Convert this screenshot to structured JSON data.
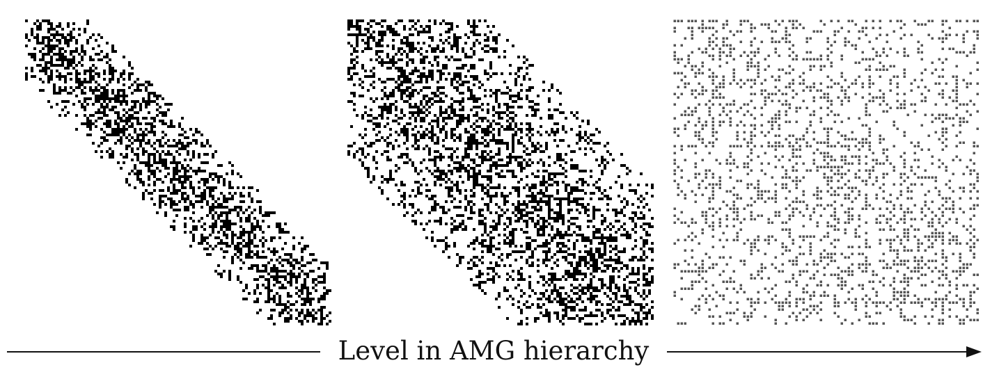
{
  "figure": {
    "axis_label": "Level in AMG hierarchy",
    "mark_color": "#000000",
    "coarse_mark_color": "#555555",
    "background_color": "#ffffff",
    "arrow_direction": "right"
  },
  "panels": [
    {
      "name": "level-1",
      "pattern": "narrow-diagonal-band"
    },
    {
      "name": "level-2",
      "pattern": "wide-diagonal-band"
    },
    {
      "name": "level-3",
      "pattern": "scattered-coarse"
    }
  ]
}
